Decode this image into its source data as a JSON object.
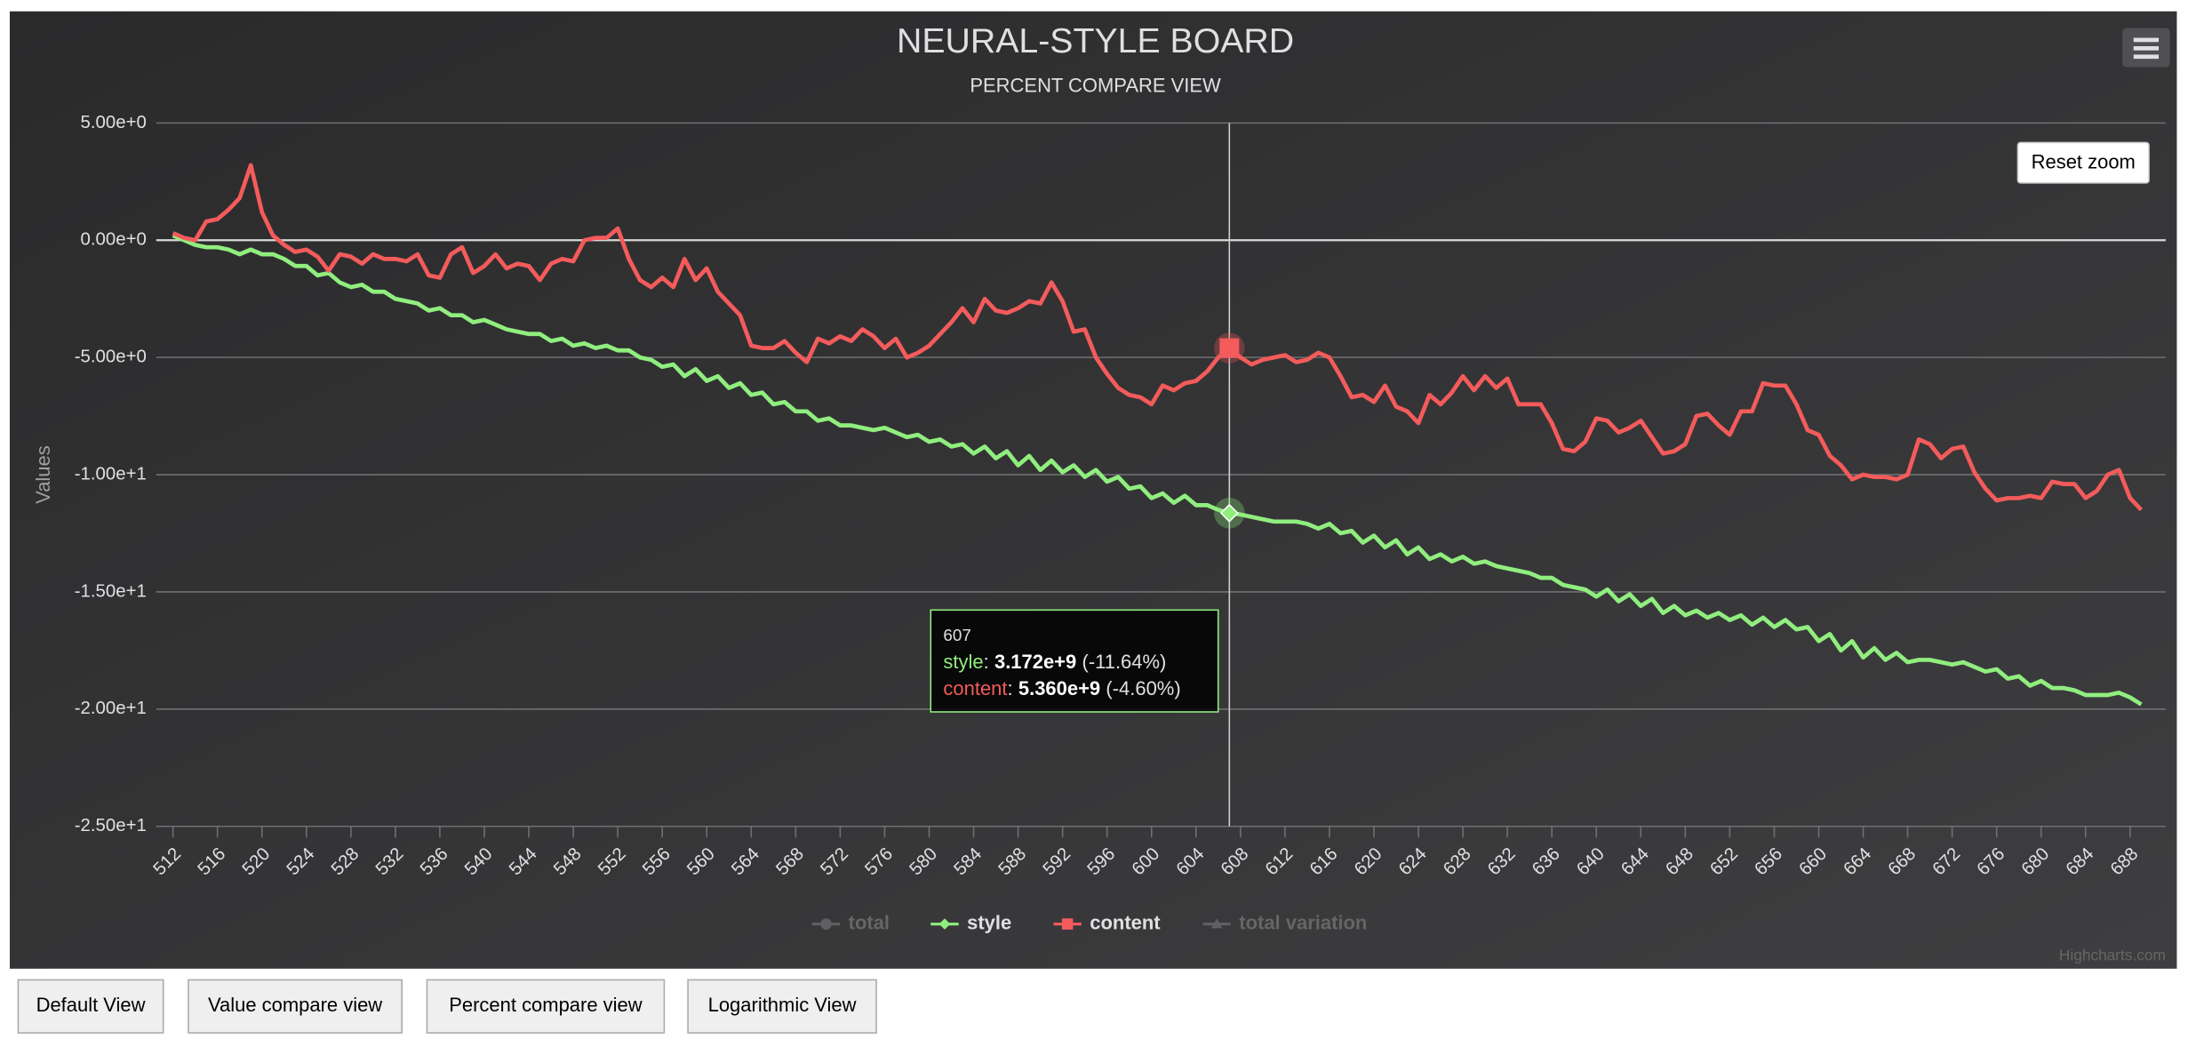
{
  "chart_data": {
    "type": "line",
    "title": "NEURAL-STYLE BOARD",
    "subtitle": "PERCENT COMPARE VIEW",
    "y_axis_label": "Values",
    "x": [
      512,
      513,
      514,
      515,
      516,
      517,
      518,
      519,
      520,
      521,
      522,
      523,
      524,
      525,
      526,
      527,
      528,
      529,
      530,
      531,
      532,
      533,
      534,
      535,
      536,
      537,
      538,
      539,
      540,
      541,
      542,
      543,
      544,
      545,
      546,
      547,
      548,
      549,
      550,
      551,
      552,
      553,
      554,
      555,
      556,
      557,
      558,
      559,
      560,
      561,
      562,
      563,
      564,
      565,
      566,
      567,
      568,
      569,
      570,
      571,
      572,
      573,
      574,
      575,
      576,
      577,
      578,
      579,
      580,
      581,
      582,
      583,
      584,
      585,
      586,
      587,
      588,
      589,
      590,
      591,
      592,
      593,
      594,
      595,
      596,
      597,
      598,
      599,
      600,
      601,
      602,
      603,
      604,
      605,
      606,
      607,
      608,
      609,
      610,
      611,
      612,
      613,
      614,
      615,
      616,
      617,
      618,
      619,
      620,
      621,
      622,
      623,
      624,
      625,
      626,
      627,
      628,
      629,
      630,
      631,
      632,
      633,
      634,
      635,
      636,
      637,
      638,
      639,
      640,
      641,
      642,
      643,
      644,
      645,
      646,
      647,
      648,
      649,
      650,
      651,
      652,
      653,
      654,
      655,
      656,
      657,
      658,
      659,
      660,
      661,
      662,
      663,
      664,
      665,
      666,
      667,
      668,
      669,
      670,
      671,
      672,
      673,
      674,
      675,
      676,
      677,
      678,
      679,
      680,
      681,
      682,
      683,
      684,
      685,
      686,
      687,
      688,
      689
    ],
    "series": [
      {
        "name": "total",
        "color": "#2b908f",
        "visible": false
      },
      {
        "name": "style",
        "color": "#90ee7e",
        "visible": true,
        "values": [
          0.2,
          0.0,
          -0.2,
          -0.3,
          -0.3,
          -0.4,
          -0.6,
          -0.4,
          -0.6,
          -0.6,
          -0.8,
          -1.1,
          -1.1,
          -1.5,
          -1.4,
          -1.8,
          -2.0,
          -1.9,
          -2.2,
          -2.2,
          -2.5,
          -2.6,
          -2.7,
          -3.0,
          -2.9,
          -3.2,
          -3.2,
          -3.5,
          -3.4,
          -3.6,
          -3.8,
          -3.9,
          -4.0,
          -4.0,
          -4.3,
          -4.2,
          -4.5,
          -4.4,
          -4.6,
          -4.5,
          -4.7,
          -4.7,
          -5.0,
          -5.1,
          -5.4,
          -5.3,
          -5.8,
          -5.5,
          -6.0,
          -5.8,
          -6.3,
          -6.1,
          -6.6,
          -6.5,
          -7.0,
          -6.9,
          -7.3,
          -7.3,
          -7.7,
          -7.6,
          -7.9,
          -7.9,
          -8.0,
          -8.1,
          -8.0,
          -8.2,
          -8.4,
          -8.3,
          -8.6,
          -8.5,
          -8.8,
          -8.7,
          -9.1,
          -8.8,
          -9.3,
          -9.0,
          -9.6,
          -9.2,
          -9.8,
          -9.4,
          -9.9,
          -9.6,
          -10.1,
          -9.8,
          -10.3,
          -10.1,
          -10.6,
          -10.5,
          -11.0,
          -10.8,
          -11.2,
          -10.9,
          -11.3,
          -11.3,
          -11.5,
          -11.64,
          -11.7,
          -11.8,
          -11.9,
          -12.0,
          -12.0,
          -12.0,
          -12.1,
          -12.3,
          -12.1,
          -12.5,
          -12.4,
          -12.9,
          -12.6,
          -13.1,
          -12.8,
          -13.4,
          -13.1,
          -13.6,
          -13.4,
          -13.7,
          -13.5,
          -13.8,
          -13.7,
          -13.9,
          -14.0,
          -14.1,
          -14.2,
          -14.4,
          -14.4,
          -14.7,
          -14.8,
          -14.9,
          -15.2,
          -14.9,
          -15.4,
          -15.1,
          -15.6,
          -15.3,
          -15.9,
          -15.6,
          -16.0,
          -15.8,
          -16.1,
          -15.9,
          -16.2,
          -16.0,
          -16.4,
          -16.1,
          -16.5,
          -16.2,
          -16.6,
          -16.5,
          -17.1,
          -16.8,
          -17.5,
          -17.1,
          -17.8,
          -17.4,
          -17.9,
          -17.6,
          -18.0,
          -17.9,
          -17.9,
          -18.0,
          -18.1,
          -18.0,
          -18.2,
          -18.4,
          -18.3,
          -18.7,
          -18.6,
          -19.0,
          -18.8,
          -19.1,
          -19.1,
          -19.2,
          -19.4,
          -19.4,
          -19.4,
          -19.3,
          -19.5,
          -19.8
        ]
      },
      {
        "name": "content",
        "color": "#f45b5b",
        "visible": true,
        "values": [
          0.3,
          0.1,
          0.0,
          0.8,
          0.9,
          1.3,
          1.8,
          3.2,
          1.2,
          0.2,
          -0.2,
          -0.5,
          -0.4,
          -0.7,
          -1.3,
          -0.6,
          -0.7,
          -1.0,
          -0.6,
          -0.8,
          -0.8,
          -0.9,
          -0.6,
          -1.5,
          -1.6,
          -0.6,
          -0.3,
          -1.4,
          -1.1,
          -0.6,
          -1.2,
          -1.0,
          -1.1,
          -1.7,
          -1.0,
          -0.8,
          -0.9,
          0.0,
          0.1,
          0.1,
          0.5,
          -0.8,
          -1.7,
          -2.0,
          -1.6,
          -2.0,
          -0.8,
          -1.7,
          -1.2,
          -2.2,
          -2.7,
          -3.2,
          -4.5,
          -4.6,
          -4.6,
          -4.3,
          -4.8,
          -5.2,
          -4.2,
          -4.4,
          -4.1,
          -4.3,
          -3.8,
          -4.1,
          -4.6,
          -4.2,
          -5.0,
          -4.8,
          -4.5,
          -4.0,
          -3.5,
          -2.9,
          -3.5,
          -2.5,
          -3.0,
          -3.1,
          -2.9,
          -2.6,
          -2.7,
          -1.8,
          -2.6,
          -3.9,
          -3.8,
          -5.0,
          -5.7,
          -6.3,
          -6.6,
          -6.7,
          -7.0,
          -6.2,
          -6.4,
          -6.1,
          -6.0,
          -5.6,
          -5.0,
          -4.6,
          -5.0,
          -5.3,
          -5.1,
          -5.0,
          -4.9,
          -5.2,
          -5.1,
          -4.8,
          -5.0,
          -5.8,
          -6.7,
          -6.6,
          -6.9,
          -6.2,
          -7.1,
          -7.3,
          -7.8,
          -6.6,
          -7.0,
          -6.5,
          -5.8,
          -6.4,
          -5.8,
          -6.3,
          -5.9,
          -7.0,
          -7.0,
          -7.0,
          -7.8,
          -8.9,
          -9.0,
          -8.6,
          -7.6,
          -7.7,
          -8.2,
          -8.0,
          -7.7,
          -8.4,
          -9.1,
          -9.0,
          -8.7,
          -7.5,
          -7.4,
          -7.9,
          -8.3,
          -7.3,
          -7.3,
          -6.1,
          -6.2,
          -6.2,
          -7.0,
          -8.1,
          -8.3,
          -9.2,
          -9.6,
          -10.2,
          -10.0,
          -10.1,
          -10.1,
          -10.2,
          -10.0,
          -8.5,
          -8.7,
          -9.3,
          -8.9,
          -8.8,
          -9.9,
          -10.6,
          -11.1,
          -11.0,
          -11.0,
          -10.9,
          -11.0,
          -10.3,
          -10.4,
          -10.4,
          -11.0,
          -10.7,
          -10.0,
          -9.8,
          -11.0,
          -11.5
        ]
      },
      {
        "name": "total variation",
        "color": "#7798BF",
        "visible": false
      }
    ],
    "xlim": [
      510.5,
      691.2
    ],
    "xticks": [
      512,
      516,
      520,
      524,
      528,
      532,
      536,
      540,
      544,
      548,
      552,
      556,
      560,
      564,
      568,
      572,
      576,
      580,
      584,
      588,
      592,
      596,
      600,
      604,
      608,
      612,
      616,
      620,
      624,
      628,
      632,
      636,
      640,
      644,
      648,
      652,
      656,
      660,
      664,
      668,
      672,
      676,
      680,
      684,
      688
    ],
    "ylim": [
      -25,
      5
    ],
    "yticks": [
      {
        "value": -25,
        "label": "-2.50e+1"
      },
      {
        "value": -20,
        "label": "-2.00e+1"
      },
      {
        "value": -15,
        "label": "-1.50e+1"
      },
      {
        "value": -10,
        "label": "-1.00e+1"
      },
      {
        "value": -5,
        "label": "-5.00e+0"
      },
      {
        "value": 0,
        "label": "0.00e+0"
      },
      {
        "value": 5,
        "label": "5.00e+0"
      }
    ],
    "grid": true,
    "y_plot_line": 0,
    "legend": "bottom",
    "tooltip": {
      "x": 607,
      "separator": ":",
      "rows": [
        {
          "series": "style",
          "value": "3.172e+9",
          "percent": "(-11.64%)"
        },
        {
          "series": "content",
          "value": "5.360e+9",
          "percent": "(-4.60%)"
        }
      ]
    },
    "reset_zoom": "Reset zoom",
    "credits": "Highcharts.com"
  },
  "buttons": [
    "Default View",
    "Value compare view",
    "Percent compare view",
    "Logarithmic View"
  ]
}
